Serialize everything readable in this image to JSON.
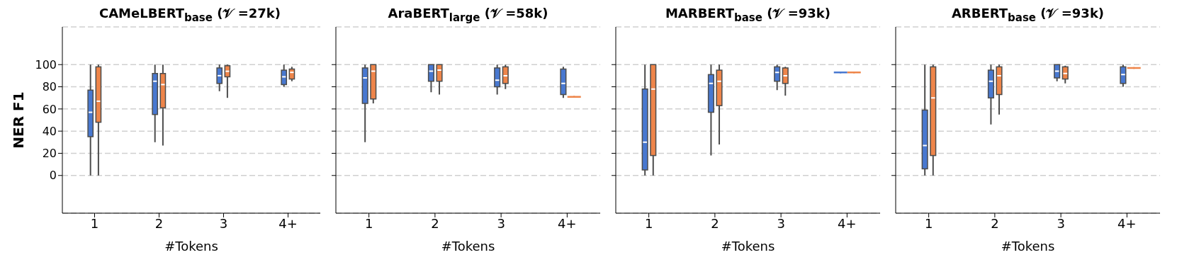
{
  "chart_data": [
    {
      "type": "box",
      "title": "CAMeLBERT$_{base}$ (𝒱 =27k)",
      "xlabel": "#Tokens",
      "ylabel": "NER F1",
      "categories": [
        "1",
        "2",
        "3",
        "4+"
      ],
      "ylim": [
        -34,
        134
      ],
      "yticks": [
        0,
        20,
        40,
        60,
        80,
        100
      ],
      "grid": "y",
      "series": [
        {
          "color": "#4878d0",
          "boxes": [
            {
              "low": 0,
              "q1": 35,
              "median": 57,
              "q3": 77,
              "high": 100
            },
            {
              "low": 30,
              "q1": 55,
              "median": 85,
              "q3": 92,
              "high": 100
            },
            {
              "low": 76,
              "q1": 83,
              "median": 90,
              "q3": 97,
              "high": 100
            },
            {
              "low": 80,
              "q1": 82,
              "median": 89,
              "q3": 95,
              "high": 100
            }
          ]
        },
        {
          "color": "#ee854a",
          "boxes": [
            {
              "low": 0,
              "q1": 48,
              "median": 67,
              "q3": 98,
              "high": 100
            },
            {
              "low": 27,
              "q1": 61,
              "median": 82,
              "q3": 92,
              "high": 100
            },
            {
              "low": 70,
              "q1": 89,
              "median": 94,
              "q3": 99,
              "high": 100
            },
            {
              "low": 85,
              "q1": 87,
              "median": 93,
              "q3": 96,
              "high": 98
            }
          ]
        }
      ]
    },
    {
      "type": "box",
      "title": "AraBERT$_{large}$ (𝒱 =58k)",
      "xlabel": "#Tokens",
      "categories": [
        "1",
        "2",
        "3",
        "4+"
      ],
      "ylim": [
        -34,
        134
      ],
      "yticks": [
        0,
        20,
        40,
        60,
        80,
        100
      ],
      "grid": "y",
      "tick_labels": "x",
      "series": [
        {
          "color": "#4878d0",
          "boxes": [
            {
              "low": 30,
              "q1": 65,
              "median": 88,
              "q3": 97,
              "high": 100
            },
            {
              "low": 75,
              "q1": 85,
              "median": 94,
              "q3": 100,
              "high": 100
            },
            {
              "low": 73,
              "q1": 80,
              "median": 86,
              "q3": 97,
              "high": 100
            },
            {
              "low": 70,
              "q1": 73,
              "median": 83,
              "q3": 96,
              "high": 98
            }
          ]
        },
        {
          "color": "#ee854a",
          "boxes": [
            {
              "low": 65,
              "q1": 69,
              "median": 94,
              "q3": 100,
              "high": 100
            },
            {
              "low": 73,
              "q1": 85,
              "median": 95,
              "q3": 100,
              "high": 100
            },
            {
              "low": 78,
              "q1": 83,
              "median": 90,
              "q3": 98,
              "high": 100
            },
            {
              "low": 71,
              "q1": 71,
              "median": 71,
              "q3": 71,
              "high": 71
            }
          ]
        }
      ]
    },
    {
      "type": "box",
      "title": "MARBERT$_{base}$ (𝒱 =93k)",
      "xlabel": "#Tokens",
      "categories": [
        "1",
        "2",
        "3",
        "4+"
      ],
      "ylim": [
        -34,
        134
      ],
      "yticks": [
        0,
        20,
        40,
        60,
        80,
        100
      ],
      "grid": "y",
      "tick_labels": "x",
      "series": [
        {
          "color": "#4878d0",
          "boxes": [
            {
              "low": 0,
              "q1": 5,
              "median": 30,
              "q3": 78,
              "high": 100
            },
            {
              "low": 18,
              "q1": 57,
              "median": 83,
              "q3": 91,
              "high": 100
            },
            {
              "low": 77,
              "q1": 85,
              "median": 93,
              "q3": 98,
              "high": 100
            },
            {
              "low": 93,
              "q1": 93,
              "median": 93,
              "q3": 93,
              "high": 93
            }
          ]
        },
        {
          "color": "#ee854a",
          "boxes": [
            {
              "low": 0,
              "q1": 18,
              "median": 78,
              "q3": 100,
              "high": 100
            },
            {
              "low": 28,
              "q1": 63,
              "median": 85,
              "q3": 95,
              "high": 100
            },
            {
              "low": 72,
              "q1": 83,
              "median": 90,
              "q3": 97,
              "high": 98
            },
            {
              "low": 93,
              "q1": 93,
              "median": 93,
              "q3": 93,
              "high": 93
            }
          ]
        }
      ]
    },
    {
      "type": "box",
      "title": "ARBERT$_{base}$ (𝒱 =93k)",
      "xlabel": "#Tokens",
      "categories": [
        "1",
        "2",
        "3",
        "4+"
      ],
      "ylim": [
        -34,
        134
      ],
      "yticks": [
        0,
        20,
        40,
        60,
        80,
        100
      ],
      "grid": "y",
      "tick_labels": "x",
      "series": [
        {
          "color": "#4878d0",
          "boxes": [
            {
              "low": 0,
              "q1": 6,
              "median": 27,
              "q3": 59,
              "high": 100
            },
            {
              "low": 46,
              "q1": 70,
              "median": 85,
              "q3": 95,
              "high": 100
            },
            {
              "low": 85,
              "q1": 88,
              "median": 94,
              "q3": 100,
              "high": 100
            },
            {
              "low": 80,
              "q1": 83,
              "median": 91,
              "q3": 98,
              "high": 100
            }
          ]
        },
        {
          "color": "#ee854a",
          "boxes": [
            {
              "low": 0,
              "q1": 18,
              "median": 70,
              "q3": 98,
              "high": 100
            },
            {
              "low": 55,
              "q1": 73,
              "median": 90,
              "q3": 98,
              "high": 100
            },
            {
              "low": 83,
              "q1": 87,
              "median": 92,
              "q3": 98,
              "high": 99
            },
            {
              "low": 97,
              "q1": 97,
              "median": 97,
              "q3": 97,
              "high": 97
            }
          ]
        }
      ]
    }
  ]
}
